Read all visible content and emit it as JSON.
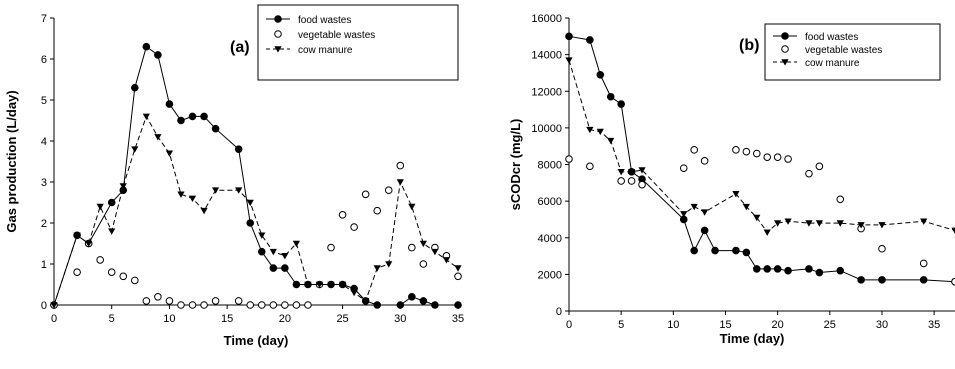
{
  "chart_data": [
    {
      "type": "line",
      "panel_label": "(a)",
      "xlabel": "Time (day)",
      "ylabel": "Gas production (L/day)",
      "xlim": [
        0,
        35
      ],
      "ylim": [
        0,
        7
      ],
      "xticks": [
        0,
        5,
        10,
        15,
        20,
        25,
        30,
        35
      ],
      "yticks": [
        0,
        1,
        2,
        3,
        4,
        5,
        6,
        7
      ],
      "legend_position": "top-right",
      "series": [
        {
          "name": "food wastes",
          "marker": "filled-circle",
          "line": "solid",
          "x": [
            0,
            2,
            3,
            5,
            6,
            7,
            8,
            9,
            10,
            11,
            12,
            13,
            14,
            16,
            17,
            18,
            19,
            20,
            21,
            22,
            24,
            25,
            26,
            27,
            28,
            30,
            31,
            32,
            33,
            35
          ],
          "y": [
            0,
            1.7,
            1.5,
            2.5,
            2.8,
            5.3,
            6.3,
            6.1,
            4.9,
            4.5,
            4.6,
            4.6,
            4.3,
            3.8,
            2.0,
            1.3,
            0.9,
            0.9,
            0.5,
            0.5,
            0.5,
            0.5,
            0.4,
            0.1,
            0.0,
            0.0,
            0.2,
            0.1,
            0.0,
            0.0
          ]
        },
        {
          "name": "vegetable wastes",
          "marker": "open-circle",
          "line": "none",
          "x": [
            0,
            2,
            3,
            4,
            5,
            6,
            7,
            8,
            9,
            10,
            11,
            12,
            13,
            14,
            16,
            17,
            18,
            19,
            20,
            21,
            22,
            23,
            24,
            25,
            26,
            27,
            28,
            29,
            30,
            31,
            32,
            33,
            34,
            35
          ],
          "y": [
            0,
            0.8,
            1.5,
            1.1,
            0.8,
            0.7,
            0.6,
            0.1,
            0.2,
            0.1,
            0.0,
            0.0,
            0.0,
            0.1,
            0.1,
            0.0,
            0.0,
            0.0,
            0.0,
            0.0,
            0.0,
            0.5,
            1.4,
            2.2,
            1.9,
            2.7,
            2.3,
            2.8,
            3.4,
            1.4,
            1.0,
            1.4,
            1.2,
            0.7
          ]
        },
        {
          "name": "cow manure",
          "marker": "filled-triangle-down",
          "line": "dashed",
          "x": [
            0,
            2,
            3,
            4,
            5,
            6,
            7,
            8,
            9,
            10,
            11,
            12,
            13,
            14,
            16,
            17,
            18,
            19,
            20,
            21,
            22,
            23,
            24,
            25,
            26,
            27,
            28,
            29,
            30,
            31,
            32,
            33,
            34,
            35
          ],
          "y": [
            0,
            1.7,
            1.5,
            2.4,
            1.8,
            2.9,
            3.8,
            4.6,
            4.1,
            3.7,
            2.7,
            2.6,
            2.3,
            2.8,
            2.8,
            2.5,
            1.7,
            1.3,
            1.2,
            1.5,
            0.5,
            0.5,
            0.5,
            0.5,
            0.3,
            0.1,
            0.9,
            1.0,
            3.0,
            2.4,
            1.5,
            1.3,
            1.1,
            0.9
          ]
        }
      ]
    },
    {
      "type": "line",
      "panel_label": "(b)",
      "xlabel": "Time (day)",
      "ylabel": "sCODcr (mg/L)",
      "xlim": [
        0,
        37
      ],
      "ylim": [
        0,
        16000
      ],
      "xticks": [
        0,
        5,
        10,
        15,
        20,
        25,
        30,
        35
      ],
      "yticks": [
        0,
        2000,
        4000,
        6000,
        8000,
        10000,
        12000,
        14000,
        16000
      ],
      "legend_position": "top-right",
      "series": [
        {
          "name": "food wastes",
          "marker": "filled-circle",
          "line": "solid",
          "x": [
            0,
            2,
            3,
            4,
            5,
            6,
            7,
            11,
            12,
            13,
            14,
            16,
            17,
            18,
            19,
            20,
            21,
            23,
            24,
            26,
            28,
            30,
            34,
            37
          ],
          "y": [
            15000,
            14800,
            12900,
            11700,
            11300,
            7600,
            7200,
            5000,
            3300,
            4400,
            3300,
            3300,
            3200,
            2300,
            2300,
            2300,
            2200,
            2300,
            2100,
            2200,
            1700,
            1700,
            1700,
            1600
          ]
        },
        {
          "name": "vegetable wastes",
          "marker": "open-circle",
          "line": "none",
          "x": [
            0,
            2,
            5,
            6,
            7,
            11,
            12,
            13,
            16,
            17,
            18,
            19,
            20,
            21,
            23,
            24,
            26,
            28,
            30,
            34,
            37
          ],
          "y": [
            8300,
            7900,
            7100,
            7100,
            6900,
            7800,
            8800,
            8200,
            8800,
            8700,
            8600,
            8400,
            8400,
            8300,
            7500,
            7900,
            6100,
            4500,
            3400,
            2600,
            1600
          ]
        },
        {
          "name": "cow manure",
          "marker": "filled-triangle-down",
          "line": "dashed",
          "x": [
            0,
            2,
            3,
            4,
            5,
            6,
            7,
            11,
            12,
            13,
            16,
            17,
            18,
            19,
            20,
            21,
            23,
            24,
            26,
            28,
            30,
            34,
            37
          ],
          "y": [
            13700,
            9900,
            9800,
            9300,
            7600,
            7600,
            7700,
            5300,
            5700,
            5400,
            6400,
            5700,
            5100,
            4300,
            4800,
            4900,
            4800,
            4800,
            4800,
            4700,
            4700,
            4900,
            4400
          ]
        }
      ]
    }
  ]
}
